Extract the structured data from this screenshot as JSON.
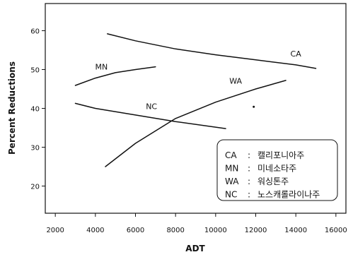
{
  "chart_data": {
    "type": "line",
    "title": "",
    "xlabel": "ADT",
    "ylabel": "Percent Reductions",
    "xlim": [
      1500,
      16500
    ],
    "ylim": [
      13,
      67
    ],
    "xticks": [
      2000,
      4000,
      6000,
      8000,
      10000,
      12000,
      14000,
      16000
    ],
    "yticks": [
      20,
      30,
      40,
      50,
      60
    ],
    "grid": false,
    "legend_position": "bottom-right",
    "series": [
      {
        "name": "CA",
        "x": [
          4600,
          6000,
          8000,
          10000,
          12000,
          14000,
          15000
        ],
        "y": [
          59.2,
          57.4,
          55.3,
          53.8,
          52.5,
          51.2,
          50.3
        ]
      },
      {
        "name": "MN",
        "x": [
          3000,
          4000,
          5000,
          6000,
          7000
        ],
        "y": [
          45.9,
          47.8,
          49.2,
          50.0,
          50.7
        ]
      },
      {
        "name": "WA",
        "x": [
          4500,
          6000,
          8000,
          10000,
          12000,
          13500
        ],
        "y": [
          25.0,
          31.0,
          37.4,
          41.6,
          45.0,
          47.2
        ]
      },
      {
        "name": "NC",
        "x": [
          3000,
          4000,
          6000,
          8000,
          10500
        ],
        "y": [
          41.3,
          40.0,
          38.3,
          36.6,
          34.8
        ]
      }
    ],
    "series_labels": [
      {
        "text": "CA",
        "x": 14000,
        "y": 53.4
      },
      {
        "text": "MN",
        "x": 4300,
        "y": 50.0
      },
      {
        "text": "WA",
        "x": 11000,
        "y": 46.4
      },
      {
        "text": "NC",
        "x": 6800,
        "y": 39.8
      }
    ],
    "stray_point": {
      "x": 11900,
      "y": 40.4
    },
    "legend_entries": [
      {
        "code": "CA",
        "sep": ":",
        "name": "캘리포니아주"
      },
      {
        "code": "MN",
        "sep": ":",
        "name": "미네소타주"
      },
      {
        "code": "WA",
        "sep": ":",
        "name": "워싱톤주"
      },
      {
        "code": "NC",
        "sep": ":",
        "name": "노스캐롤라이나주"
      }
    ]
  }
}
